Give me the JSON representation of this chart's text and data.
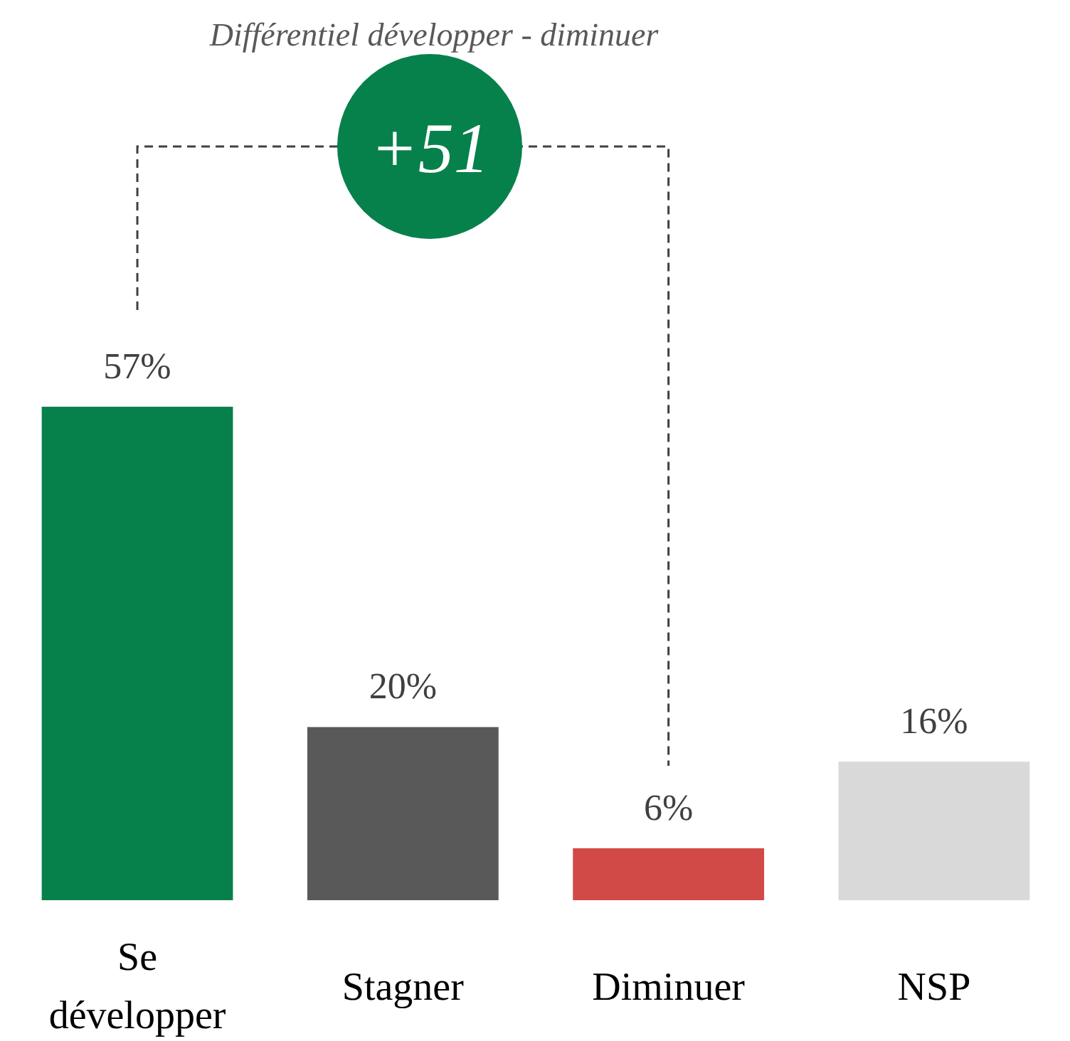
{
  "chart_data": {
    "type": "bar",
    "title": "Différentiel développer - diminuer",
    "categories": [
      "Se développer",
      "Stagner",
      "Diminuer",
      "NSP"
    ],
    "values": [
      57,
      20,
      6,
      16
    ],
    "colors": [
      "#07814c",
      "#595959",
      "#d24a48",
      "#d9d9d9"
    ],
    "value_labels": [
      "57%",
      "20%",
      "6%",
      "16%"
    ],
    "annotations": [
      "+51"
    ]
  }
}
